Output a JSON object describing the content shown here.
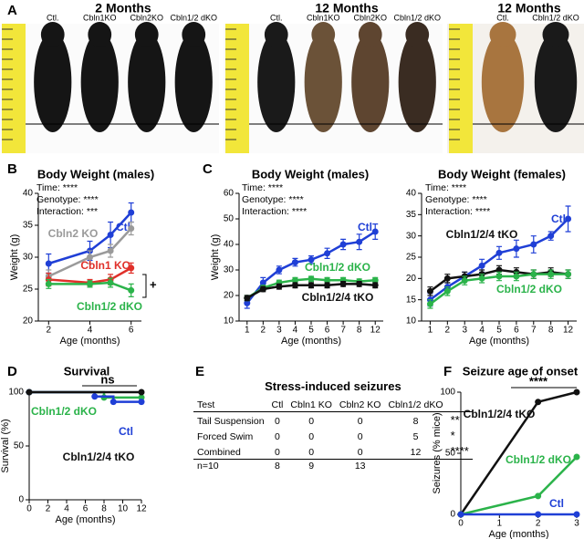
{
  "panel_labels": [
    "A",
    "B",
    "C",
    "D",
    "E",
    "F"
  ],
  "photos": [
    {
      "title": "2 Months",
      "labels": [
        "Ctl.",
        "Cbln1KO",
        "Cbln2KO",
        "Cbln1/2 dKO"
      ]
    },
    {
      "title": "12 Months",
      "labels": [
        "Ctl.",
        "Cbln1KO",
        "Cbln2KO",
        "Cbln1/2 dKO"
      ]
    },
    {
      "title": "12 Months",
      "labels": [
        "Ctl.",
        "Cbln1/2 dKO"
      ]
    }
  ],
  "chart_data": [
    {
      "type": "line",
      "title": "Body Weight (males)",
      "xlabel": "Age (months)",
      "ylabel": "Weight (g)",
      "annotations": [
        "Time: ****",
        "Genotype: ****",
        "Interaction: ***",
        "+"
      ],
      "x": [
        2,
        4,
        5,
        6
      ],
      "xlim": [
        1.5,
        6.5
      ],
      "xticks": [
        2,
        4,
        6
      ],
      "ylim": [
        20,
        40
      ],
      "yticks": [
        20,
        25,
        30,
        35,
        40
      ],
      "series": [
        {
          "name": "Ctl",
          "color": "#1f3fd6",
          "values": [
            29,
            31,
            33.5,
            37
          ],
          "errors": [
            1.5,
            1.5,
            2,
            1.5
          ]
        },
        {
          "name": "Cbln2 KO",
          "color": "#9a9a9a",
          "values": [
            27,
            30,
            31,
            34.5
          ],
          "errors": [
            1,
            1,
            1,
            1
          ]
        },
        {
          "name": "Cbln1 KO",
          "color": "#e0302a",
          "values": [
            26.5,
            26,
            26.5,
            28.3
          ],
          "errors": [
            1,
            0.5,
            0.8,
            0.8
          ]
        },
        {
          "name": "Cbln1/2 dKO",
          "color": "#2bb34a",
          "values": [
            25.8,
            25.8,
            26,
            24.8
          ],
          "errors": [
            0.7,
            0.5,
            0.7,
            1
          ]
        }
      ]
    },
    {
      "type": "line",
      "title": "Body Weight (males)",
      "xlabel": "Age (months)",
      "ylabel": "Weight (g)",
      "annotations": [
        "Time: ****",
        "Genotype: ****",
        "Interaction: ****"
      ],
      "categories": [
        "1",
        "2",
        "3",
        "4",
        "5",
        "6",
        "7",
        "8",
        "12"
      ],
      "ylim": [
        10,
        60
      ],
      "yticks": [
        10,
        20,
        30,
        40,
        50,
        60
      ],
      "series": [
        {
          "name": "Ctl",
          "color": "#1f3fd6",
          "values": [
            17,
            25,
            30,
            33,
            34,
            36.5,
            40,
            41,
            45
          ],
          "errors": [
            2,
            2,
            1.5,
            1.5,
            1.5,
            2,
            2,
            3,
            3
          ]
        },
        {
          "name": "Cbln1/2 dKO",
          "color": "#2bb34a",
          "values": [
            19,
            23,
            25,
            26,
            26.5,
            26,
            26,
            25.5,
            26
          ],
          "errors": [
            1,
            1,
            1,
            1,
            1,
            1,
            1,
            1,
            1
          ]
        },
        {
          "name": "Cbln1/2/4 tKO",
          "color": "#111111",
          "values": [
            19,
            22.5,
            23.5,
            24,
            24,
            24,
            24.5,
            24.5,
            24
          ],
          "errors": [
            1,
            1,
            1,
            1,
            1,
            1,
            1,
            1,
            1
          ]
        }
      ]
    },
    {
      "type": "line",
      "title": "Body Weight (females)",
      "xlabel": "Age (months)",
      "annotations": [
        "Time: ****",
        "Genotype: ****",
        "Interaction: ****"
      ],
      "categories": [
        "1",
        "2",
        "3",
        "4",
        "5",
        "6",
        "7",
        "8",
        "12"
      ],
      "ylim": [
        10,
        40
      ],
      "yticks": [
        10,
        15,
        20,
        25,
        30,
        35,
        40
      ],
      "series": [
        {
          "name": "Ctl",
          "color": "#1f3fd6",
          "values": [
            15,
            18,
            20.5,
            23,
            26,
            27,
            28,
            30,
            34
          ],
          "errors": [
            1.5,
            1,
            1,
            1.5,
            1.5,
            2,
            2,
            1,
            3
          ]
        },
        {
          "name": "Cbln1/2/4 tKO",
          "color": "#111111",
          "values": [
            17,
            20,
            20.5,
            21,
            22,
            21.5,
            21,
            21.5,
            21
          ],
          "errors": [
            1,
            1,
            1,
            1,
            1,
            1,
            1,
            1,
            1
          ]
        },
        {
          "name": "Cbln1/2 dKO",
          "color": "#2bb34a",
          "values": [
            14,
            17,
            19.5,
            20,
            20.5,
            20.5,
            21,
            21,
            21
          ],
          "errors": [
            1,
            1,
            1,
            1,
            1,
            1,
            1,
            1,
            1
          ]
        }
      ]
    },
    {
      "type": "step",
      "title": "Survival",
      "xlabel": "Age (months)",
      "ylabel": "Survival (%)",
      "annotations": [
        "ns"
      ],
      "xlim": [
        0,
        12
      ],
      "xticks": [
        0,
        2,
        4,
        6,
        8,
        10,
        12
      ],
      "ylim": [
        0,
        100
      ],
      "yticks": [
        0,
        50,
        100
      ],
      "series": [
        {
          "name": "Cbln1/2 dKO",
          "color": "#2bb34a",
          "x": [
            0,
            6,
            8,
            12
          ],
          "values": [
            100,
            100,
            95,
            95
          ]
        },
        {
          "name": "Ctl",
          "color": "#1f3fd6",
          "x": [
            0,
            6,
            7,
            9,
            12
          ],
          "values": [
            100,
            100,
            96,
            91,
            91
          ]
        },
        {
          "name": "Cbln1/2/4 tKO",
          "color": "#111111",
          "x": [
            0,
            12
          ],
          "values": [
            100,
            100
          ]
        }
      ]
    },
    {
      "type": "line",
      "title": "Seizure age of onset",
      "xlabel": "Age (months)",
      "ylabel": "Seizures (% mice)",
      "annotations": [
        "****"
      ],
      "x": [
        0,
        2,
        3
      ],
      "xlim": [
        0,
        3
      ],
      "xticks": [
        0,
        1,
        2,
        3
      ],
      "ylim": [
        0,
        100
      ],
      "yticks": [
        0,
        50,
        100
      ],
      "series": [
        {
          "name": "Cbln1/2/4 tKO",
          "color": "#111111",
          "values": [
            0,
            92,
            100
          ]
        },
        {
          "name": "Cbln1/2 dKO",
          "color": "#2bb34a",
          "values": [
            0,
            15,
            47
          ]
        },
        {
          "name": "Ctl",
          "color": "#1f3fd6",
          "values": [
            0,
            0,
            0
          ]
        }
      ]
    }
  ],
  "table": {
    "title": "Stress-induced seizures",
    "header": [
      "Test",
      "Ctl",
      "Cbln1 KO",
      "Cbln2 KO",
      "Cbln1/2 dKO"
    ],
    "rows": [
      [
        "Tail Suspension",
        "0",
        "0",
        "0",
        "8",
        "**"
      ],
      [
        "Forced Swim",
        "0",
        "0",
        "0",
        "5",
        "*"
      ],
      [
        "Combined",
        "0",
        "0",
        "0",
        "12",
        "****"
      ]
    ],
    "footer": [
      "n=10",
      "8",
      "9",
      "13"
    ]
  }
}
